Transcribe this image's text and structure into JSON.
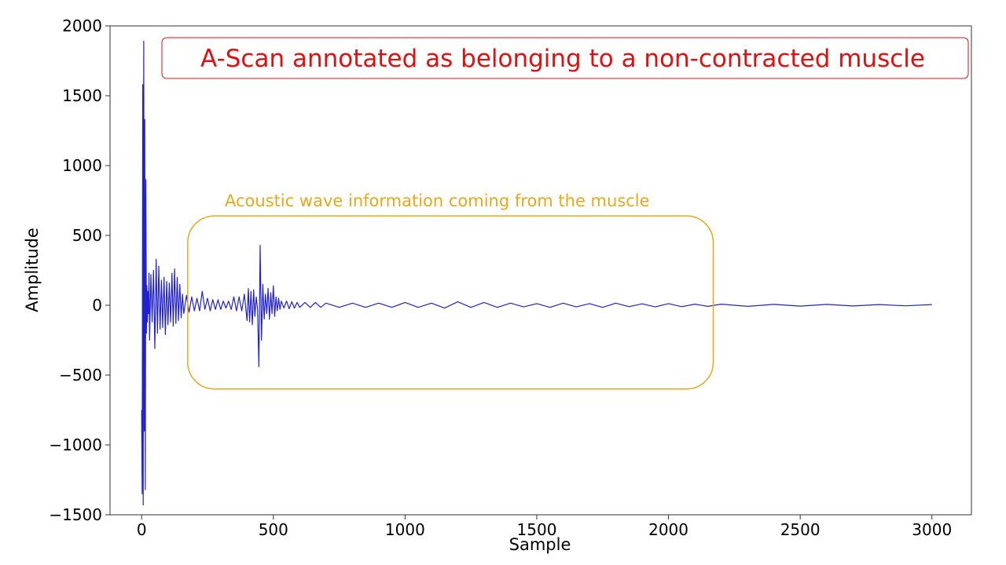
{
  "chart_data": {
    "type": "line",
    "title": "A-Scan annotated as belonging to a non-contracted muscle",
    "xlabel": "Sample",
    "ylabel": "Amplitude",
    "xlim": [
      -120,
      3150
    ],
    "ylim": [
      -1500,
      2000
    ],
    "xticks": [
      0,
      500,
      1000,
      1500,
      2000,
      2500,
      3000
    ],
    "xtick_labels": [
      "0",
      "500",
      "1000",
      "1500",
      "2000",
      "2500",
      "3000"
    ],
    "yticks": [
      -1500,
      -1000,
      -500,
      0,
      500,
      1000,
      1500,
      2000
    ],
    "ytick_labels": [
      "−1500",
      "−1000",
      "−500",
      "0",
      "500",
      "1000",
      "1500",
      "2000"
    ],
    "grid": false,
    "legend": "none",
    "series": [
      {
        "color": "#2222cc",
        "x": [
          0,
          2,
          4,
          6,
          8,
          10,
          12,
          14,
          16,
          18,
          20,
          22,
          24,
          26,
          28,
          30,
          35,
          40,
          45,
          50,
          55,
          60,
          65,
          70,
          75,
          80,
          85,
          90,
          95,
          100,
          105,
          110,
          115,
          120,
          125,
          130,
          135,
          140,
          145,
          150,
          155,
          160,
          170,
          180,
          190,
          200,
          210,
          220,
          230,
          240,
          250,
          260,
          270,
          280,
          290,
          300,
          310,
          320,
          330,
          340,
          350,
          360,
          370,
          380,
          390,
          400,
          405,
          410,
          415,
          420,
          425,
          430,
          435,
          440,
          445,
          450,
          455,
          460,
          465,
          470,
          475,
          480,
          485,
          490,
          495,
          500,
          505,
          510,
          515,
          520,
          525,
          530,
          540,
          550,
          560,
          570,
          580,
          590,
          600,
          620,
          640,
          660,
          680,
          700,
          750,
          800,
          850,
          900,
          950,
          1000,
          1050,
          1100,
          1150,
          1200,
          1250,
          1300,
          1350,
          1400,
          1450,
          1500,
          1550,
          1600,
          1650,
          1700,
          1750,
          1800,
          1850,
          1900,
          1950,
          2000,
          2050,
          2100,
          2150,
          2200,
          2300,
          2400,
          2500,
          2600,
          2700,
          2800,
          2900,
          3000
        ],
        "y": [
          -750,
          -1350,
          1580,
          -1430,
          1890,
          -900,
          1330,
          -1320,
          900,
          -200,
          140,
          -120,
          100,
          -60,
          230,
          -250,
          220,
          -120,
          250,
          -310,
          330,
          -200,
          280,
          -170,
          180,
          -160,
          200,
          -210,
          170,
          -140,
          160,
          -120,
          230,
          -150,
          260,
          -130,
          200,
          -110,
          150,
          -90,
          80,
          -60,
          70,
          -50,
          60,
          -40,
          50,
          -40,
          100,
          -30,
          50,
          -40,
          40,
          -30,
          40,
          -30,
          30,
          -20,
          30,
          -30,
          60,
          -40,
          60,
          -40,
          80,
          -110,
          120,
          -120,
          100,
          -140,
          110,
          -80,
          60,
          -30,
          -440,
          430,
          -250,
          150,
          -100,
          80,
          -60,
          120,
          -100,
          90,
          -60,
          140,
          -80,
          60,
          -40,
          50,
          -30,
          30,
          -20,
          30,
          -25,
          25,
          -20,
          20,
          -15,
          20,
          -15,
          20,
          -15,
          15,
          -15,
          15,
          -15,
          15,
          -15,
          20,
          -15,
          15,
          -20,
          25,
          -15,
          20,
          -15,
          15,
          -12,
          12,
          -15,
          15,
          -12,
          12,
          -15,
          15,
          -10,
          10,
          -12,
          12,
          -10,
          8,
          -8,
          8,
          -8,
          6,
          -6,
          6,
          -5,
          5,
          -4,
          5
        ]
      }
    ],
    "annotations": {
      "title_box": {
        "text": "A-Scan annotated as belonging to a non-contracted muscle",
        "color": "#e01010"
      },
      "region_box": {
        "label": "Acoustic wave information coming from the muscle",
        "color": "#e8a818",
        "x_range": [
          175,
          2170
        ],
        "y_range": [
          -600,
          640
        ]
      }
    }
  }
}
